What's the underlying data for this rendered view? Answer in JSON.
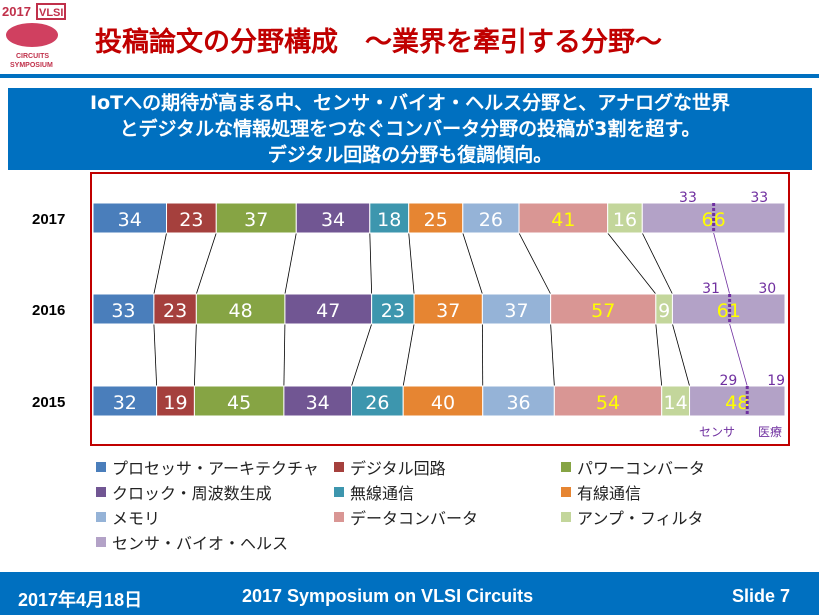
{
  "logo": {
    "year": "2017",
    "brand": "VLSI",
    "line1": "CIRCUITS",
    "line2": "SYMPOSIUM"
  },
  "title": "投稿論文の分野構成　～業界を牽引する分野～",
  "banner": [
    "IoTへの期待が高まる中、センサ・バイオ・ヘルス分野と、アナログな世界",
    "とデジタルな情報処理をつなぐコンバータ分野の投稿が3割を超す。",
    "デジタル回路の分野も復調傾向。"
  ],
  "chart_data": {
    "type": "bar",
    "orientation": "horizontal",
    "stacking": "percent",
    "categories": [
      "2017",
      "2016",
      "2015"
    ],
    "series": [
      {
        "name": "プロセッサ・アーキテクチャ",
        "color": "#4a7ebb",
        "label_color": "#ffffff",
        "values": [
          34,
          33,
          32
        ]
      },
      {
        "name": "デジタル回路",
        "color": "#a5403d",
        "label_color": "#ffffff",
        "values": [
          23,
          23,
          19
        ]
      },
      {
        "name": "パワーコンバータ",
        "color": "#86a444",
        "label_color": "#ffffff",
        "values": [
          37,
          48,
          45
        ]
      },
      {
        "name": "クロック・周波数生成",
        "color": "#715693",
        "label_color": "#ffffff",
        "values": [
          34,
          47,
          34
        ]
      },
      {
        "name": "無線通信",
        "color": "#3d96ae",
        "label_color": "#ffffff",
        "values": [
          18,
          23,
          26
        ]
      },
      {
        "name": "有線通信",
        "color": "#e68532",
        "label_color": "#ffffff",
        "values": [
          25,
          37,
          40
        ]
      },
      {
        "name": "メモリ",
        "color": "#95b3d7",
        "label_color": "#ffffff",
        "values": [
          26,
          37,
          36
        ]
      },
      {
        "name": "データコンバータ",
        "color": "#d99694",
        "label_color": "#ffff00",
        "values": [
          41,
          57,
          54
        ]
      },
      {
        "name": "アンプ・フィルタ",
        "color": "#c3d69b",
        "label_color": "#ffffff",
        "values": [
          16,
          9,
          14
        ]
      },
      {
        "name": "センサ・バイオ・ヘルス",
        "color": "#b3a2c7",
        "label_color": "#ffff00",
        "values": [
          66,
          61,
          48
        ]
      }
    ],
    "sensor_breakdown": {
      "sensor": [
        33,
        31,
        29
      ],
      "medical": [
        33,
        30,
        19
      ],
      "labels": [
        "センサ",
        "医療"
      ],
      "color": "#7030a0"
    },
    "legend_position": "bottom"
  },
  "footer": {
    "date": "2017年4月18日",
    "event": "2017 Symposium on VLSI Circuits",
    "slide": "Slide 7"
  }
}
